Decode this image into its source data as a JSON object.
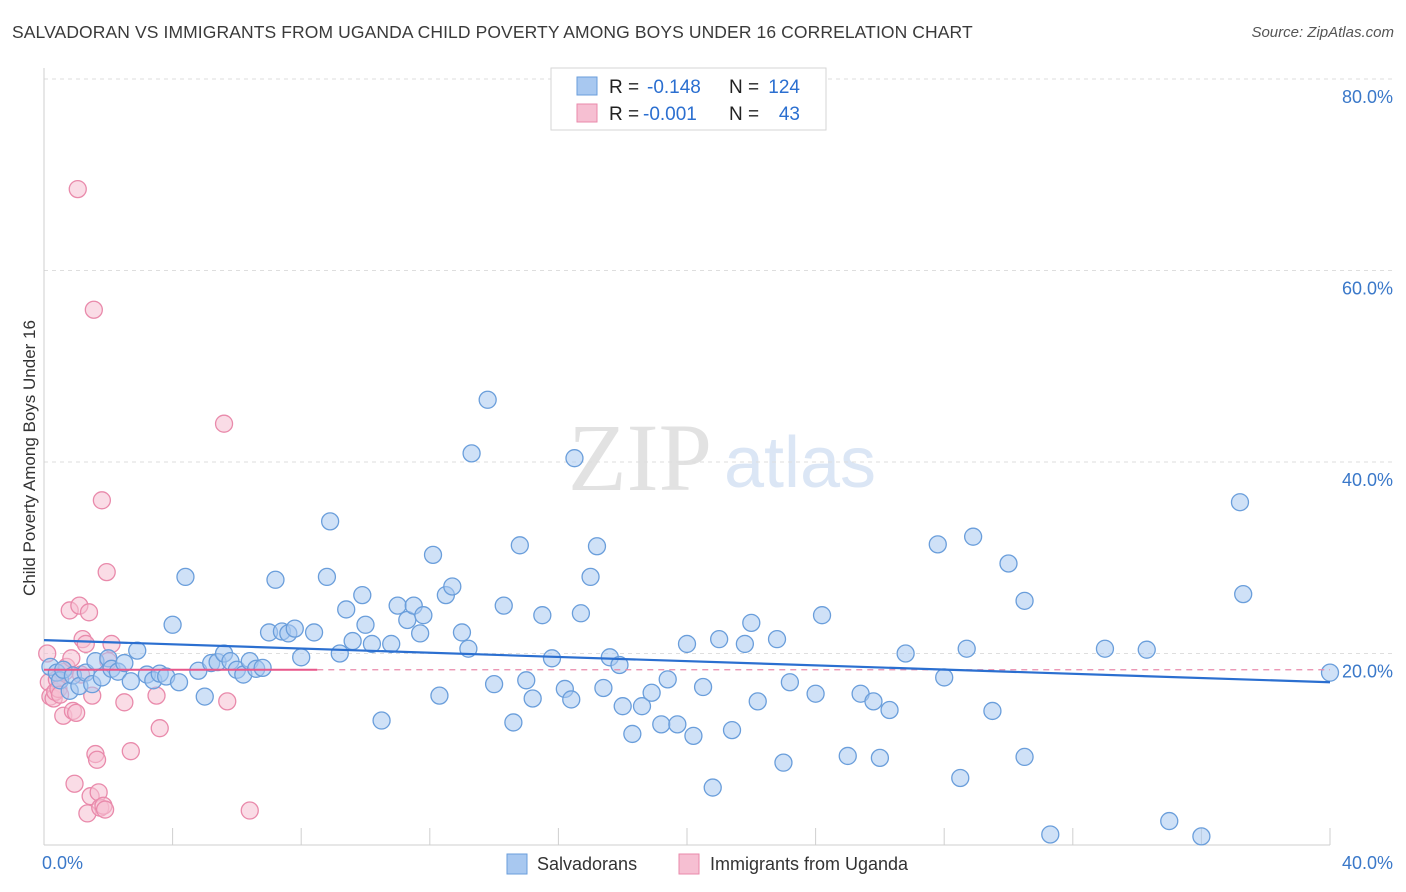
{
  "title": "SALVADORAN VS IMMIGRANTS FROM UGANDA CHILD POVERTY AMONG BOYS UNDER 16 CORRELATION CHART",
  "source": "Source: ZipAtlas.com",
  "watermark": {
    "zip": "ZIP",
    "atlas": "atlas"
  },
  "colors": {
    "blue_fill": "#a8c8f0",
    "blue_stroke": "#6a9edb",
    "blue_line": "#2b6fd0",
    "pink_fill": "#f6bfd2",
    "pink_stroke": "#e98aab",
    "pink_line": "#e8578a",
    "tick_text": "#3a78c9",
    "grid": "#dedede"
  },
  "legend": {
    "rows": [
      {
        "r_label": "R =",
        "r_value": "-0.148",
        "n_label": "N =",
        "n_value": "124"
      },
      {
        "r_label": "R =",
        "r_value": "-0.001",
        "n_label": "N =",
        "n_value": "43"
      }
    ]
  },
  "chart_data": {
    "type": "scatter",
    "xlabel": "",
    "ylabel": "Child Poverty Among Boys Under 16",
    "xlim": [
      0,
      40
    ],
    "ylim": [
      0,
      80
    ],
    "x_tick_labels": {
      "left": "0.0%",
      "right": "40.0%"
    },
    "y_ticks": [
      {
        "value": 20,
        "label": "20.0%"
      },
      {
        "value": 40,
        "label": "40.0%"
      },
      {
        "value": 60,
        "label": "60.0%"
      },
      {
        "value": 80,
        "label": "80.0%"
      }
    ],
    "grid": true,
    "series": [
      {
        "name": "Salvadorans",
        "color": "blue",
        "r": -0.148,
        "n": 124,
        "trend": {
          "x": [
            0,
            40
          ],
          "y": [
            21.4,
            17.0
          ]
        },
        "points": [
          [
            0.2,
            18.6
          ],
          [
            0.4,
            18.0
          ],
          [
            0.5,
            17.2
          ],
          [
            0.6,
            18.3
          ],
          [
            0.8,
            16.1
          ],
          [
            0.9,
            17.7
          ],
          [
            1.1,
            16.6
          ],
          [
            1.3,
            18.0
          ],
          [
            1.5,
            16.8
          ],
          [
            1.6,
            19.2
          ],
          [
            1.8,
            17.5
          ],
          [
            2.0,
            19.5
          ],
          [
            2.1,
            18.4
          ],
          [
            2.3,
            18.1
          ],
          [
            2.5,
            19.0
          ],
          [
            2.7,
            17.1
          ],
          [
            2.9,
            20.3
          ],
          [
            3.2,
            17.8
          ],
          [
            3.4,
            17.2
          ],
          [
            3.6,
            17.9
          ],
          [
            3.8,
            17.6
          ],
          [
            4.0,
            23.0
          ],
          [
            4.2,
            17.0
          ],
          [
            4.4,
            28.0
          ],
          [
            4.8,
            18.2
          ],
          [
            5.0,
            15.5
          ],
          [
            5.2,
            19.0
          ],
          [
            5.4,
            19.1
          ],
          [
            5.6,
            20.0
          ],
          [
            5.8,
            19.2
          ],
          [
            6.0,
            18.3
          ],
          [
            6.2,
            17.8
          ],
          [
            6.4,
            19.2
          ],
          [
            6.6,
            18.4
          ],
          [
            6.8,
            18.5
          ],
          [
            7.0,
            22.2
          ],
          [
            7.2,
            27.7
          ],
          [
            7.4,
            22.3
          ],
          [
            7.6,
            22.1
          ],
          [
            7.8,
            22.6
          ],
          [
            8.0,
            19.6
          ],
          [
            8.4,
            22.2
          ],
          [
            8.8,
            28.0
          ],
          [
            8.9,
            33.8
          ],
          [
            9.2,
            20.0
          ],
          [
            9.4,
            24.6
          ],
          [
            9.6,
            21.3
          ],
          [
            9.9,
            26.1
          ],
          [
            10.0,
            23.0
          ],
          [
            10.2,
            21.0
          ],
          [
            10.5,
            13.0
          ],
          [
            10.8,
            21.0
          ],
          [
            11.0,
            25.0
          ],
          [
            11.3,
            23.5
          ],
          [
            11.5,
            25.0
          ],
          [
            11.7,
            22.1
          ],
          [
            11.8,
            24.0
          ],
          [
            12.1,
            30.3
          ],
          [
            12.3,
            15.6
          ],
          [
            12.5,
            26.1
          ],
          [
            12.7,
            27.0
          ],
          [
            13.0,
            22.2
          ],
          [
            13.2,
            20.5
          ],
          [
            13.3,
            40.9
          ],
          [
            13.8,
            46.5
          ],
          [
            14.0,
            16.8
          ],
          [
            14.3,
            25.0
          ],
          [
            14.6,
            12.8
          ],
          [
            14.8,
            31.3
          ],
          [
            15.0,
            17.2
          ],
          [
            15.2,
            15.3
          ],
          [
            15.5,
            24.0
          ],
          [
            15.8,
            19.5
          ],
          [
            16.2,
            16.3
          ],
          [
            16.4,
            15.2
          ],
          [
            16.5,
            40.4
          ],
          [
            16.7,
            24.2
          ],
          [
            17.0,
            28.0
          ],
          [
            17.2,
            31.2
          ],
          [
            17.4,
            16.4
          ],
          [
            17.6,
            19.6
          ],
          [
            17.9,
            18.8
          ],
          [
            18.0,
            14.5
          ],
          [
            18.3,
            11.6
          ],
          [
            18.6,
            14.5
          ],
          [
            18.9,
            15.9
          ],
          [
            19.2,
            12.6
          ],
          [
            19.4,
            17.3
          ],
          [
            19.7,
            12.6
          ],
          [
            20.0,
            21.0
          ],
          [
            20.2,
            11.4
          ],
          [
            20.5,
            16.5
          ],
          [
            20.8,
            6.0
          ],
          [
            21.0,
            21.5
          ],
          [
            21.4,
            12.0
          ],
          [
            21.8,
            21.0
          ],
          [
            22.0,
            23.2
          ],
          [
            22.2,
            15.0
          ],
          [
            22.8,
            21.5
          ],
          [
            23.0,
            8.6
          ],
          [
            23.2,
            17.0
          ],
          [
            24.0,
            15.8
          ],
          [
            24.2,
            24.0
          ],
          [
            25.0,
            9.3
          ],
          [
            25.4,
            15.8
          ],
          [
            25.8,
            15.0
          ],
          [
            26.0,
            9.1
          ],
          [
            26.3,
            14.1
          ],
          [
            26.8,
            20.0
          ],
          [
            27.8,
            31.4
          ],
          [
            28.0,
            17.5
          ],
          [
            28.5,
            7.0
          ],
          [
            28.7,
            20.5
          ],
          [
            28.9,
            32.2
          ],
          [
            29.5,
            14.0
          ],
          [
            30.0,
            29.4
          ],
          [
            30.5,
            25.5
          ],
          [
            30.5,
            9.2
          ],
          [
            31.3,
            1.1
          ],
          [
            33.0,
            20.5
          ],
          [
            34.3,
            20.4
          ],
          [
            35.0,
            2.5
          ],
          [
            36.0,
            0.9
          ],
          [
            37.2,
            35.8
          ],
          [
            37.3,
            26.2
          ],
          [
            40.0,
            18.0
          ]
        ]
      },
      {
        "name": "Immigrants from Uganda",
        "color": "pink",
        "r": -0.001,
        "n": 43,
        "trend": {
          "x": [
            0,
            8.5
          ],
          "y": [
            18.3,
            18.3
          ]
        },
        "points": [
          [
            0.1,
            20.0
          ],
          [
            0.15,
            17.0
          ],
          [
            0.2,
            15.5
          ],
          [
            0.3,
            15.3
          ],
          [
            0.35,
            16.0
          ],
          [
            0.4,
            17.3
          ],
          [
            0.45,
            16.3
          ],
          [
            0.5,
            15.7
          ],
          [
            0.6,
            13.5
          ],
          [
            0.65,
            18.1
          ],
          [
            0.7,
            18.6
          ],
          [
            0.8,
            24.5
          ],
          [
            0.85,
            19.5
          ],
          [
            0.9,
            14.0
          ],
          [
            0.95,
            6.4
          ],
          [
            1.0,
            13.8
          ],
          [
            1.05,
            68.5
          ],
          [
            1.1,
            25.0
          ],
          [
            1.15,
            17.8
          ],
          [
            1.2,
            21.5
          ],
          [
            1.3,
            21.0
          ],
          [
            1.35,
            3.3
          ],
          [
            1.4,
            24.3
          ],
          [
            1.45,
            5.1
          ],
          [
            1.5,
            15.6
          ],
          [
            1.55,
            55.9
          ],
          [
            1.6,
            9.5
          ],
          [
            1.65,
            8.9
          ],
          [
            1.7,
            5.5
          ],
          [
            1.75,
            3.9
          ],
          [
            1.8,
            36.0
          ],
          [
            1.85,
            4.1
          ],
          [
            1.9,
            3.7
          ],
          [
            1.95,
            28.5
          ],
          [
            2.0,
            19.2
          ],
          [
            2.1,
            21.0
          ],
          [
            2.5,
            14.9
          ],
          [
            2.7,
            9.8
          ],
          [
            3.5,
            15.6
          ],
          [
            3.6,
            12.2
          ],
          [
            5.6,
            44.0
          ],
          [
            5.7,
            15.0
          ],
          [
            6.4,
            3.6
          ]
        ]
      }
    ]
  },
  "bottom_legend": {
    "items": [
      "Salvadorans",
      "Immigrants from Uganda"
    ]
  }
}
